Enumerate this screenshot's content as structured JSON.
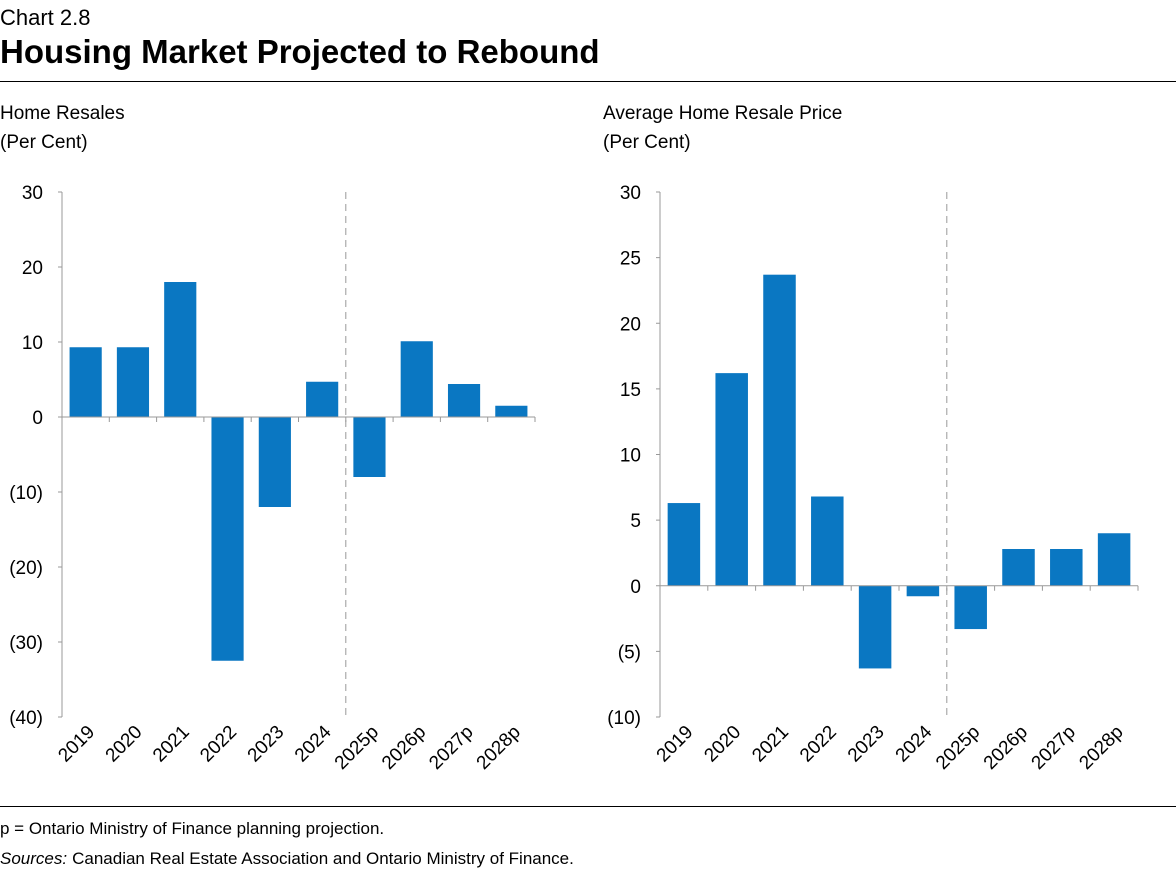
{
  "chart_label": "Chart 2.8",
  "title": "Housing Market Projected to Rebound",
  "footnote": "p = Ontario Ministry of Finance planning projection.",
  "sources_label": "Sources:",
  "sources": "Canadian Real Estate Association and Ontario Ministry of Finance.",
  "chart_data": [
    {
      "type": "bar",
      "title": "Home Resales",
      "subtitle": "(Per Cent)",
      "categories": [
        "2019",
        "2020",
        "2021",
        "2022",
        "2023",
        "2024",
        "2025p",
        "2026p",
        "2027p",
        "2028p"
      ],
      "values": [
        9.3,
        9.3,
        18.0,
        -32.5,
        -12.0,
        4.7,
        -8.0,
        10.1,
        4.4,
        1.5
      ],
      "color": "#0a77c2",
      "ylim": [
        -40,
        30
      ],
      "yticks": [
        {
          "value": -40,
          "label": "(40)"
        },
        {
          "value": -30,
          "label": "(30)"
        },
        {
          "value": -20,
          "label": "(20)"
        },
        {
          "value": -10,
          "label": "(10)"
        },
        0,
        10,
        20,
        30
      ]
    },
    {
      "type": "bar",
      "title": "Average Home Resale Price",
      "subtitle": "(Per Cent)",
      "categories": [
        "2019",
        "2020",
        "2021",
        "2022",
        "2023",
        "2024",
        "2025p",
        "2026p",
        "2027p",
        "2028p"
      ],
      "values": [
        6.3,
        16.2,
        23.7,
        6.8,
        -6.3,
        -0.8,
        -3.3,
        2.8,
        2.8,
        4.0
      ],
      "color": "#0a77c2",
      "ylim": [
        -10,
        30
      ],
      "yticks": [
        {
          "value": -10,
          "label": "(10)"
        },
        {
          "value": -5,
          "label": "(5)"
        },
        0,
        5,
        10,
        15,
        20,
        25,
        30
      ]
    }
  ]
}
